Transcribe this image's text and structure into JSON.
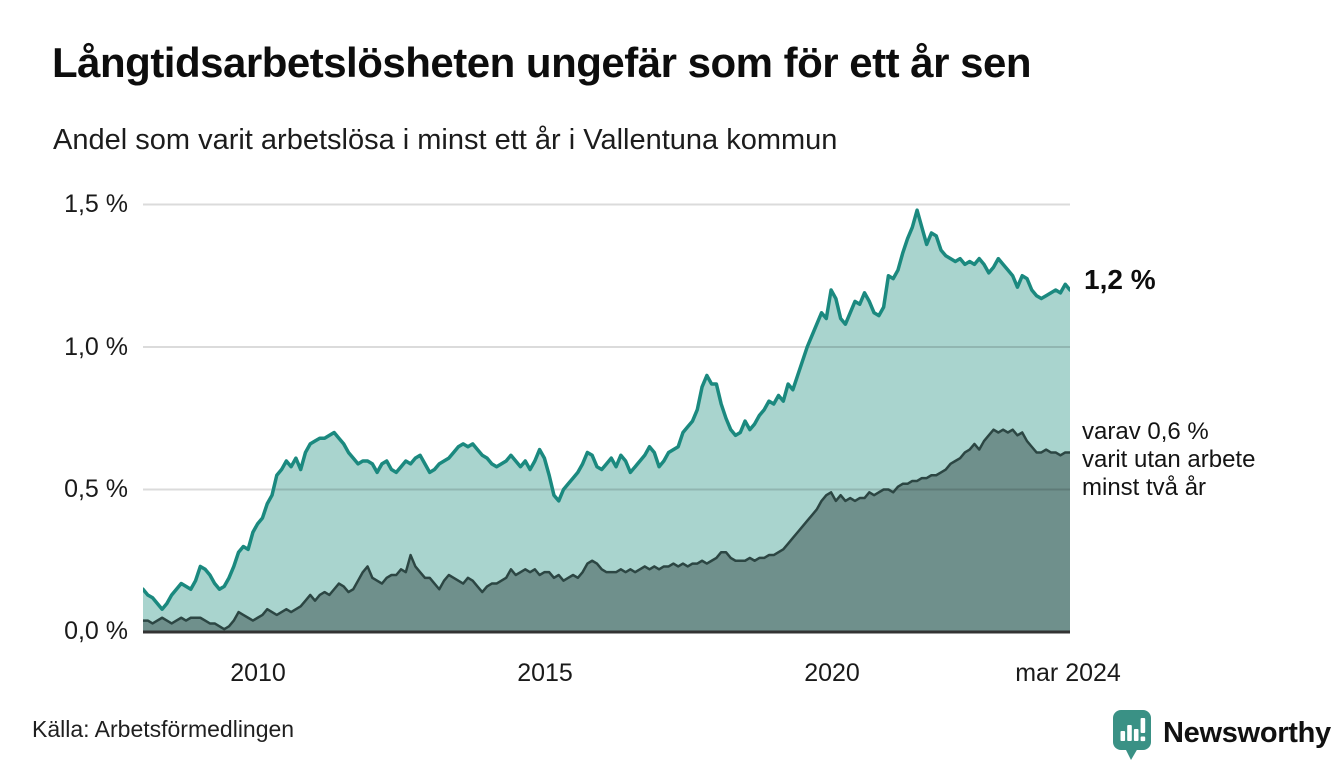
{
  "header": {
    "title": "Långtidsarbetslösheten ungefär som för ett år sen",
    "subtitle": "Andel som varit arbetslösa i minst ett år i Vallentuna kommun"
  },
  "annotations": {
    "latest_total_label": "1,2 %",
    "secondary_lines": [
      "varav 0,6 %",
      "varit utan arbete",
      "minst två år"
    ]
  },
  "source_label": "Källa: Arbetsförmedlingen",
  "branding": {
    "logo_text": "Newsworthy",
    "logo_icon": "newsworthy-speech-bubble-bar-chart-icon",
    "logo_color": "#3a9185"
  },
  "colors": {
    "series1_fill": "#a9d4ce",
    "series1_line": "#1b897f",
    "series2_fill": "#6f908c",
    "series2_line": "#2c4643",
    "gridline": "rgba(0,0,0,0.14)",
    "axis_line": "#333333",
    "text": "#1a1a1a"
  },
  "chart_data": {
    "type": "area",
    "title": "Långtidsarbetslösheten ungefär som för ett år sen",
    "subtitle": "Andel som varit arbetslösa i minst ett år i Vallentuna kommun",
    "unit": "%",
    "x_start": "2008-01",
    "x_end": "2024-03",
    "x_frequency": "monthly",
    "x_tick_labels": [
      "2010",
      "2015",
      "2020",
      "mar 2024"
    ],
    "x_tick_month_index": [
      24,
      84,
      144,
      194
    ],
    "y_tick_labels": [
      "0,0 %",
      "0,5 %",
      "1,0 %",
      "1,5 %"
    ],
    "y_tick_values": [
      0.0,
      0.5,
      1.0,
      1.5
    ],
    "ylim": [
      0,
      1.55
    ],
    "gridlines": [
      0.5,
      1.0,
      1.5
    ],
    "legend_position": "annotations-right",
    "series": [
      {
        "name": "Andel arbetslösa minst ett år",
        "latest_value": 1.2,
        "latest_label": "1,2 %",
        "values": [
          0.15,
          0.13,
          0.12,
          0.1,
          0.08,
          0.1,
          0.13,
          0.15,
          0.17,
          0.16,
          0.15,
          0.18,
          0.23,
          0.22,
          0.2,
          0.17,
          0.15,
          0.16,
          0.19,
          0.23,
          0.28,
          0.3,
          0.29,
          0.35,
          0.38,
          0.4,
          0.45,
          0.48,
          0.55,
          0.57,
          0.6,
          0.58,
          0.61,
          0.57,
          0.63,
          0.66,
          0.67,
          0.68,
          0.68,
          0.69,
          0.7,
          0.68,
          0.66,
          0.63,
          0.61,
          0.59,
          0.6,
          0.6,
          0.59,
          0.56,
          0.59,
          0.6,
          0.57,
          0.56,
          0.58,
          0.6,
          0.59,
          0.61,
          0.62,
          0.59,
          0.56,
          0.57,
          0.59,
          0.6,
          0.61,
          0.63,
          0.65,
          0.66,
          0.65,
          0.66,
          0.64,
          0.62,
          0.61,
          0.59,
          0.58,
          0.59,
          0.6,
          0.62,
          0.6,
          0.58,
          0.6,
          0.57,
          0.6,
          0.64,
          0.61,
          0.55,
          0.48,
          0.46,
          0.5,
          0.52,
          0.54,
          0.56,
          0.59,
          0.63,
          0.62,
          0.58,
          0.57,
          0.59,
          0.61,
          0.58,
          0.62,
          0.6,
          0.56,
          0.58,
          0.6,
          0.62,
          0.65,
          0.63,
          0.58,
          0.6,
          0.63,
          0.64,
          0.65,
          0.7,
          0.72,
          0.74,
          0.78,
          0.86,
          0.9,
          0.87,
          0.87,
          0.8,
          0.75,
          0.71,
          0.69,
          0.7,
          0.74,
          0.71,
          0.73,
          0.76,
          0.78,
          0.81,
          0.8,
          0.83,
          0.81,
          0.87,
          0.85,
          0.9,
          0.95,
          1.0,
          1.04,
          1.08,
          1.12,
          1.1,
          1.2,
          1.17,
          1.1,
          1.08,
          1.12,
          1.16,
          1.15,
          1.19,
          1.16,
          1.12,
          1.11,
          1.14,
          1.25,
          1.24,
          1.27,
          1.33,
          1.38,
          1.42,
          1.48,
          1.42,
          1.36,
          1.4,
          1.39,
          1.34,
          1.32,
          1.31,
          1.3,
          1.31,
          1.29,
          1.3,
          1.29,
          1.31,
          1.29,
          1.26,
          1.28,
          1.31,
          1.29,
          1.27,
          1.25,
          1.21,
          1.25,
          1.24,
          1.2,
          1.18,
          1.17,
          1.18,
          1.19,
          1.2,
          1.19,
          1.22,
          1.2
        ]
      },
      {
        "name": "varav utan arbete minst två år",
        "latest_value": 0.6,
        "latest_label": "0,6 %",
        "values": [
          0.04,
          0.04,
          0.03,
          0.04,
          0.05,
          0.04,
          0.03,
          0.04,
          0.05,
          0.04,
          0.05,
          0.05,
          0.05,
          0.04,
          0.03,
          0.03,
          0.02,
          0.01,
          0.02,
          0.04,
          0.07,
          0.06,
          0.05,
          0.04,
          0.05,
          0.06,
          0.08,
          0.07,
          0.06,
          0.07,
          0.08,
          0.07,
          0.08,
          0.09,
          0.11,
          0.13,
          0.11,
          0.13,
          0.14,
          0.13,
          0.15,
          0.17,
          0.16,
          0.14,
          0.15,
          0.18,
          0.21,
          0.23,
          0.19,
          0.18,
          0.17,
          0.19,
          0.2,
          0.2,
          0.22,
          0.21,
          0.27,
          0.23,
          0.21,
          0.19,
          0.19,
          0.17,
          0.15,
          0.18,
          0.2,
          0.19,
          0.18,
          0.17,
          0.19,
          0.18,
          0.16,
          0.14,
          0.16,
          0.17,
          0.17,
          0.18,
          0.19,
          0.22,
          0.2,
          0.21,
          0.22,
          0.21,
          0.22,
          0.2,
          0.21,
          0.21,
          0.19,
          0.2,
          0.18,
          0.19,
          0.2,
          0.19,
          0.21,
          0.24,
          0.25,
          0.24,
          0.22,
          0.21,
          0.21,
          0.21,
          0.22,
          0.21,
          0.22,
          0.21,
          0.22,
          0.23,
          0.22,
          0.23,
          0.22,
          0.23,
          0.23,
          0.24,
          0.23,
          0.24,
          0.23,
          0.24,
          0.24,
          0.25,
          0.24,
          0.25,
          0.26,
          0.28,
          0.28,
          0.26,
          0.25,
          0.25,
          0.25,
          0.26,
          0.25,
          0.26,
          0.26,
          0.27,
          0.27,
          0.28,
          0.29,
          0.31,
          0.33,
          0.35,
          0.37,
          0.39,
          0.41,
          0.43,
          0.46,
          0.48,
          0.49,
          0.46,
          0.48,
          0.46,
          0.47,
          0.46,
          0.47,
          0.47,
          0.49,
          0.48,
          0.49,
          0.5,
          0.5,
          0.49,
          0.51,
          0.52,
          0.52,
          0.53,
          0.53,
          0.54,
          0.54,
          0.55,
          0.55,
          0.56,
          0.57,
          0.59,
          0.6,
          0.61,
          0.63,
          0.64,
          0.66,
          0.64,
          0.67,
          0.69,
          0.71,
          0.7,
          0.71,
          0.7,
          0.71,
          0.69,
          0.7,
          0.67,
          0.65,
          0.63,
          0.63,
          0.64,
          0.63,
          0.63,
          0.62,
          0.63,
          0.63
        ]
      }
    ]
  }
}
